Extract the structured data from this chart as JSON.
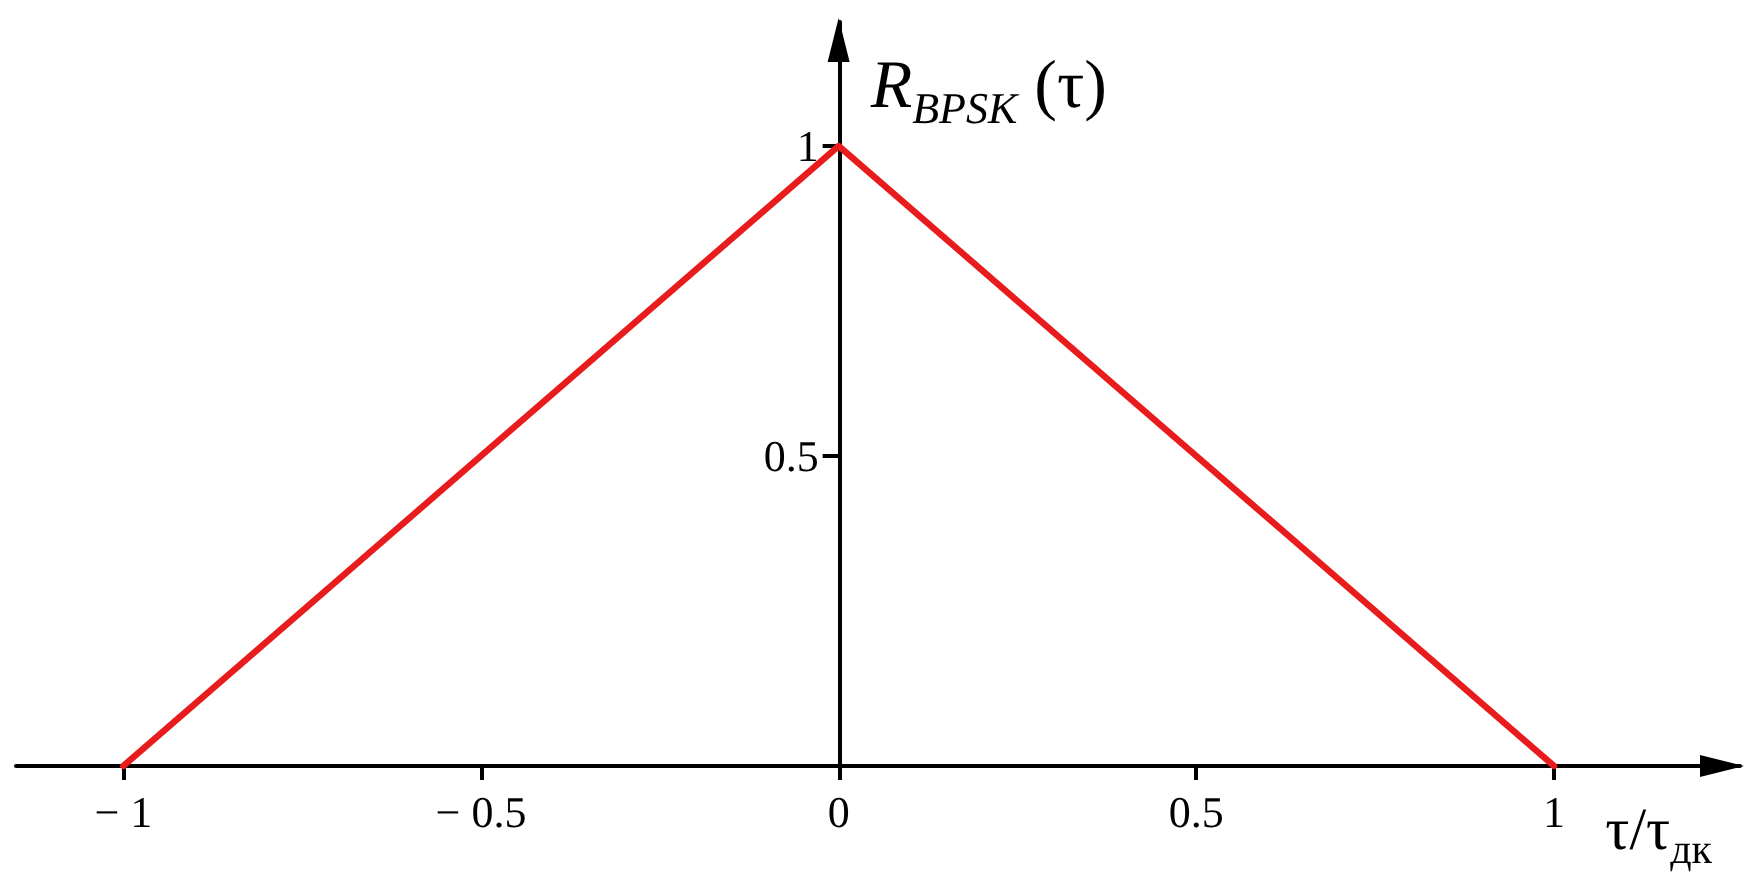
{
  "chart_data": {
    "type": "line",
    "xlabel": "τ/τ$_{дк}$",
    "ylabel": "R$_{BPSK}$ (τ)",
    "x": [
      -1,
      0,
      1
    ],
    "series": [
      {
        "color": "#e81c1c",
        "values": [
          0,
          1,
          0
        ]
      }
    ],
    "xlim": [
      -1.15,
      1.26
    ],
    "xticks": [
      {
        "value": -1,
        "label": "− 1"
      },
      {
        "value": -0.5,
        "label": "− 0.5"
      },
      0,
      0.5,
      1
    ],
    "ylim": [
      0,
      1.2
    ],
    "yticks": [
      0.5,
      1
    ],
    "marker": "none",
    "line_style": "solid"
  }
}
